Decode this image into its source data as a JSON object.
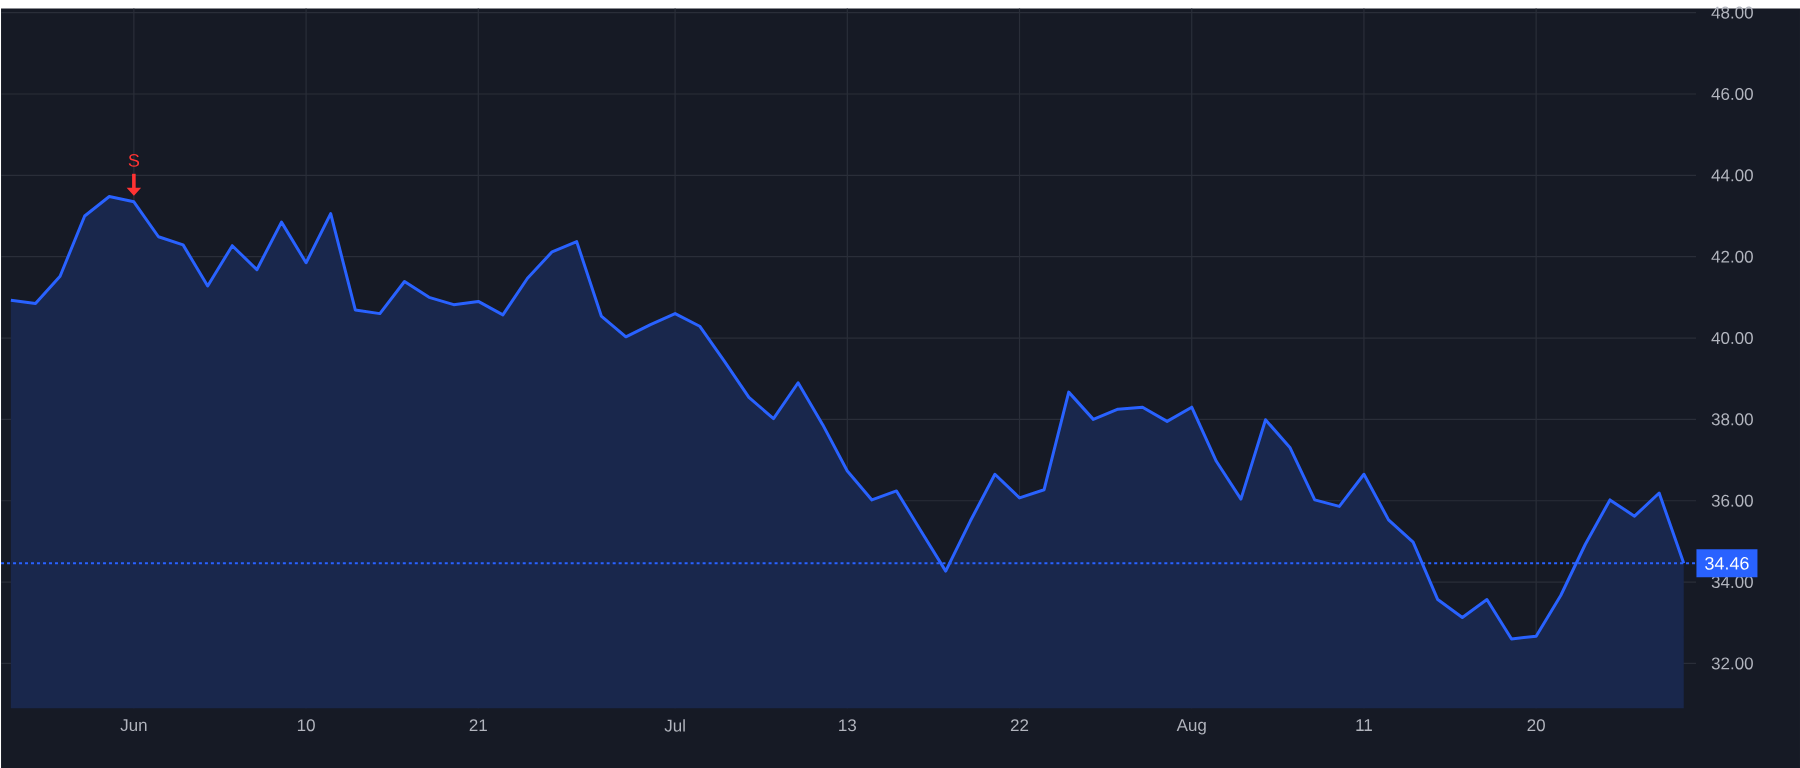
{
  "chart_data": {
    "type": "area",
    "categories": [
      null,
      null,
      null,
      null,
      null,
      "Jun",
      null,
      null,
      null,
      null,
      null,
      null,
      "10",
      null,
      null,
      null,
      null,
      null,
      null,
      "21",
      null,
      null,
      null,
      null,
      null,
      null,
      null,
      "Jul",
      null,
      null,
      null,
      null,
      null,
      null,
      "13",
      null,
      null,
      null,
      null,
      null,
      null,
      "22",
      null,
      null,
      null,
      null,
      null,
      null,
      "Aug",
      null,
      null,
      null,
      null,
      null,
      null,
      "11",
      null,
      null,
      null,
      null,
      null,
      null,
      "20",
      null,
      null,
      null,
      null,
      null,
      null
    ],
    "series": [
      {
        "color": "#2962ff",
        "values": [
          40.93,
          40.85,
          41.52,
          43.0,
          43.48,
          43.35,
          42.49,
          42.29,
          41.28,
          42.27,
          41.68,
          42.85,
          41.85,
          43.06,
          40.69,
          40.6,
          41.39,
          41.0,
          40.82,
          40.9,
          40.57,
          41.47,
          42.12,
          42.37,
          40.54,
          40.03,
          40.33,
          40.6,
          40.29,
          39.43,
          38.54,
          38.02,
          38.9,
          37.87,
          36.73,
          36.02,
          36.24,
          35.25,
          34.27,
          35.5,
          36.65,
          36.07,
          36.27,
          38.67,
          38.0,
          38.25,
          38.3,
          37.95,
          38.3,
          36.97,
          36.04,
          37.99,
          37.3,
          36.02,
          35.86,
          36.65,
          35.53,
          34.98,
          33.57,
          33.13,
          33.57,
          32.6,
          32.67,
          33.67,
          34.93,
          36.02,
          35.62,
          36.19,
          34.46
        ]
      }
    ],
    "ylim": [
      30.9,
      48.1
    ],
    "yticks": [
      {
        "value": 32,
        "label": "32.00"
      },
      {
        "value": 34,
        "label": "34.00"
      },
      {
        "value": 36,
        "label": "36.00"
      },
      {
        "value": 38,
        "label": "38.00"
      },
      {
        "value": 40,
        "label": "40.00"
      },
      {
        "value": 42,
        "label": "42.00"
      },
      {
        "value": 44,
        "label": "44.00"
      },
      {
        "value": 46,
        "label": "46.00"
      },
      {
        "value": 48,
        "label": "48.00"
      }
    ],
    "grid": true,
    "ref_lines": [
      {
        "axis": "y",
        "value": 34.46,
        "label": "34.46",
        "color": "#2962ff",
        "line_style": "dotted"
      }
    ],
    "annotations": [
      {
        "text": "S",
        "x": "Jun",
        "y": 43.35
      }
    ]
  }
}
